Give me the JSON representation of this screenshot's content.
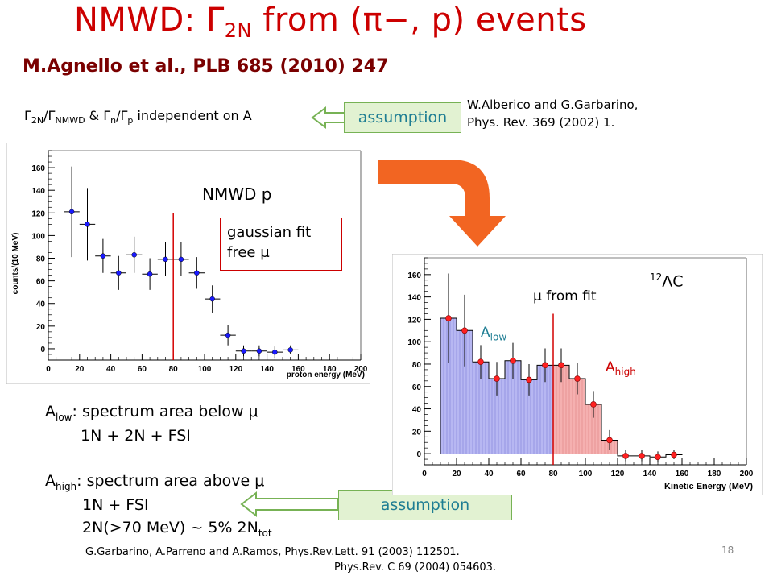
{
  "title": {
    "pre": "NMWD: ",
    "gamma": "Γ",
    "sub": "2N",
    "post": " from (π−, p) events"
  },
  "reference": "M.Agnello et al., PLB 685 (2010) 247",
  "independence": {
    "g1": "Γ",
    "s1": "2N",
    "slash1": "/Γ",
    "s2": "NMWD",
    "amp": " & Γ",
    "s3": "n",
    "slash2": "/Γ",
    "s4": "p",
    "tail": " independent on A"
  },
  "assumption_label": "assumption",
  "citation_top": {
    "line1": "W.Alberico and G.Garbarino,",
    "line2": "Phys. Rev. 369 (2002) 1."
  },
  "plot_left": {
    "label": "NMWD p",
    "ylabel": "counts/(10 MeV)",
    "xlabel": "proton energy (MeV)",
    "fit_box": {
      "line1": "gaussian fit",
      "line2": "free μ"
    }
  },
  "plot_right": {
    "nucleus": {
      "mass": "12",
      "symbol": "ΛC"
    },
    "mu_label": "μ from fit",
    "a_low": {
      "a": "A",
      "sub": "low"
    },
    "a_high": {
      "a": "A",
      "sub": "high"
    },
    "xlabel": "Kinetic Energy (MeV)"
  },
  "definitions": {
    "low": {
      "a": "A",
      "sub": "low",
      "text": ":  spectrum area below μ",
      "line2": "1N + 2N + FSI"
    },
    "high": {
      "a": "A",
      "sub": "high",
      "text": ": spectrum area above μ",
      "line2": "1N + FSI",
      "line3_pre": "2N(>70 MeV) ~ 5% 2N",
      "line3_sub": "tot"
    }
  },
  "citation_bottom": {
    "line1": "G.Garbarino, A.Parreno and A.Ramos, Phys.Rev.Lett. 91 (2003) 112501.",
    "line2": "Phys.Rev. C 69 (2004) 054603."
  },
  "page_number": "18",
  "colors": {
    "title": "#cc0000",
    "reference": "#7a0000",
    "arrow_orange": "#f26522",
    "box_fill": "#e2f2d2",
    "box_text": "#1e7d93",
    "low_fill": "#b7b7f2",
    "high_fill": "#f5b0b0"
  },
  "chart_data": [
    {
      "type": "scatter",
      "title": "",
      "xlabel": "proton energy (MeV)",
      "ylabel": "counts/(10 MeV)",
      "xlim": [
        0,
        200
      ],
      "ylim": [
        -10,
        175
      ],
      "xticks": [
        0,
        20,
        40,
        60,
        80,
        100,
        120,
        140,
        160,
        180,
        200
      ],
      "yticks": [
        0,
        20,
        40,
        60,
        80,
        100,
        120,
        140,
        160
      ],
      "series": [
        {
          "x": [
            15,
            25,
            35,
            45,
            55,
            65,
            75,
            85,
            95,
            105,
            115,
            125,
            135,
            145,
            155
          ],
          "y": [
            121,
            110,
            82,
            67,
            83,
            66,
            79,
            79,
            67,
            44,
            12,
            -2,
            -2,
            -3,
            -1
          ],
          "yerr": [
            40,
            32,
            15,
            15,
            16,
            14,
            15,
            15,
            14,
            12,
            9,
            5,
            5,
            5,
            4
          ]
        }
      ],
      "vline_x": 80
    },
    {
      "type": "bar",
      "title": "",
      "xlabel": "Kinetic Energy (MeV)",
      "ylabel": "",
      "xlim": [
        0,
        200
      ],
      "ylim": [
        -10,
        175
      ],
      "xticks": [
        0,
        20,
        40,
        60,
        80,
        100,
        120,
        140,
        160,
        180,
        200
      ],
      "yticks": [
        0,
        20,
        40,
        60,
        80,
        100,
        120,
        140,
        160
      ],
      "bin_edges": [
        10,
        20,
        30,
        40,
        50,
        60,
        70,
        80,
        90,
        100,
        110,
        120,
        130,
        140,
        150,
        160
      ],
      "values": [
        121,
        110,
        82,
        67,
        83,
        66,
        79,
        79,
        67,
        44,
        12,
        -2,
        -2,
        -3,
        -1
      ],
      "points_x": [
        15,
        25,
        35,
        45,
        55,
        65,
        75,
        85,
        95,
        105,
        115,
        125,
        135,
        145,
        155
      ],
      "points_y": [
        121,
        110,
        82,
        67,
        83,
        66,
        79,
        79,
        67,
        44,
        12,
        -2,
        -2,
        -3,
        -1
      ],
      "yerr": [
        40,
        32,
        15,
        15,
        16,
        14,
        15,
        15,
        14,
        12,
        9,
        5,
        5,
        5,
        4
      ],
      "vline_x": 80
    }
  ]
}
